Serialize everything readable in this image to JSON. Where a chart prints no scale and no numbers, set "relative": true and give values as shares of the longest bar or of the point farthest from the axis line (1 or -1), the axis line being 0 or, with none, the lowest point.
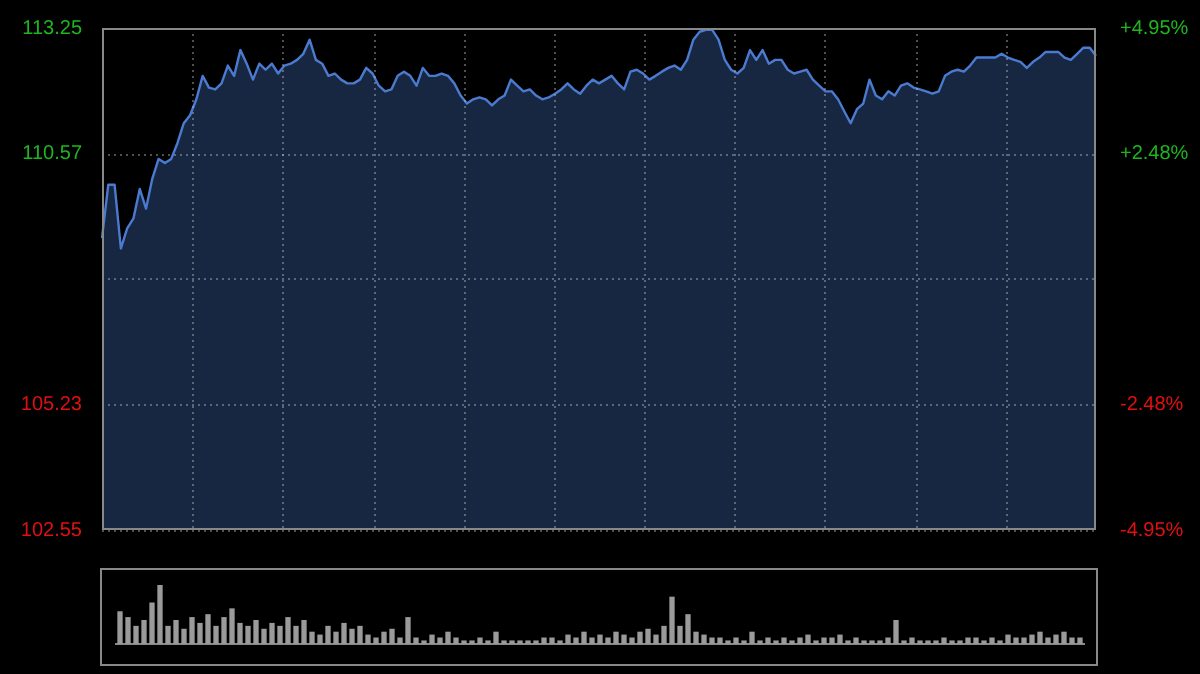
{
  "chart_data": [
    {
      "type": "area",
      "categories": [
        null,
        null,
        null,
        null,
        null,
        null,
        null,
        null,
        null,
        null,
        null,
        null,
        null,
        null,
        null,
        null,
        null,
        null,
        null,
        null,
        null,
        null,
        null,
        null,
        null,
        null,
        null,
        null,
        null,
        null,
        null,
        null,
        null,
        null,
        null,
        null,
        null,
        null,
        null,
        null,
        null,
        null,
        null,
        null,
        null,
        null,
        null,
        null,
        null,
        null,
        null,
        null,
        null,
        null,
        null,
        null,
        null,
        null,
        null,
        null,
        null,
        null,
        null,
        null,
        null,
        null,
        null,
        null,
        null,
        null,
        null,
        null,
        null,
        null,
        null,
        null,
        null,
        null,
        null,
        null,
        null,
        null,
        null,
        null,
        null,
        null,
        null,
        null,
        null,
        null,
        null,
        null,
        null,
        null,
        null,
        null,
        null,
        null,
        null,
        null,
        null,
        null,
        null,
        null,
        null,
        null,
        null,
        null,
        null,
        null,
        null,
        null,
        null,
        null,
        null,
        null,
        null,
        null,
        null,
        null,
        null,
        null,
        null,
        null,
        null,
        null,
        null,
        null,
        null,
        null,
        null,
        null,
        null,
        null,
        null,
        null,
        null,
        null,
        null,
        null,
        null,
        null,
        null,
        null,
        null,
        null,
        null,
        null,
        null,
        null,
        null,
        null,
        null,
        null,
        null,
        null,
        null,
        null,
        null
      ],
      "series": [
        {
          "color": "#4a7bd0",
          "values": [
            108.77,
            109.91,
            109.91,
            108.55,
            108.98,
            109.19,
            109.82,
            109.4,
            110.04,
            110.46,
            110.37,
            110.46,
            110.8,
            111.22,
            111.39,
            111.73,
            112.23,
            111.98,
            111.94,
            112.07,
            112.45,
            112.23,
            112.78,
            112.49,
            112.15,
            112.49,
            112.36,
            112.49,
            112.28,
            112.45,
            112.49,
            112.57,
            112.7,
            113.0,
            112.57,
            112.49,
            112.23,
            112.28,
            112.15,
            112.07,
            112.07,
            112.15,
            112.4,
            112.28,
            112.02,
            111.9,
            111.94,
            112.23,
            112.32,
            112.23,
            112.02,
            112.4,
            112.23,
            112.23,
            112.28,
            112.23,
            112.07,
            111.81,
            111.64,
            111.73,
            111.77,
            111.73,
            111.6,
            111.73,
            111.81,
            112.15,
            112.02,
            111.9,
            111.94,
            111.81,
            111.73,
            111.77,
            111.85,
            111.94,
            112.07,
            111.94,
            111.85,
            112.02,
            112.15,
            112.07,
            112.15,
            112.23,
            112.07,
            111.94,
            112.32,
            112.36,
            112.28,
            112.15,
            112.23,
            112.32,
            112.4,
            112.45,
            112.36,
            112.57,
            113.0,
            113.17,
            113.21,
            113.21,
            113.0,
            112.57,
            112.36,
            112.28,
            112.4,
            112.78,
            112.57,
            112.78,
            112.49,
            112.57,
            112.57,
            112.36,
            112.28,
            112.32,
            112.36,
            112.15,
            112.02,
            111.9,
            111.9,
            111.73,
            111.47,
            111.22,
            111.52,
            111.64,
            112.15,
            111.81,
            111.73,
            111.9,
            111.81,
            112.02,
            112.07,
            111.98,
            111.94,
            111.9,
            111.85,
            111.9,
            112.23,
            112.32,
            112.36,
            112.32,
            112.45,
            112.62,
            112.62,
            112.62,
            112.62,
            112.7,
            112.62,
            112.57,
            112.53,
            112.4,
            112.53,
            112.62,
            112.74,
            112.74,
            112.74,
            112.62,
            112.57,
            112.7,
            112.83,
            112.83,
            112.66
          ]
        }
      ],
      "ylim": [
        102.55,
        113.25
      ],
      "yticks": [
        102.55,
        105.23,
        {
          "value": 107.9,
          "label": null
        },
        110.57,
        113.25
      ],
      "y2lim": [
        -4.95,
        4.95
      ],
      "y2ticks": [
        {
          "value": -4.95,
          "label": "-4.95%"
        },
        {
          "value": -2.48,
          "label": "-2.48%"
        },
        {
          "value": 0,
          "label": null
        },
        {
          "value": 2.48,
          "label": "+2.48%"
        },
        {
          "value": 4.95,
          "label": "+4.95%"
        }
      ],
      "grid": true,
      "tick_labels": "y"
    },
    {
      "type": "bar",
      "relative": true,
      "categories": [
        null,
        null,
        null,
        null,
        null,
        null,
        null,
        null,
        null,
        null,
        null,
        null,
        null,
        null,
        null,
        null,
        null,
        null,
        null,
        null,
        null,
        null,
        null,
        null,
        null,
        null,
        null,
        null,
        null,
        null,
        null,
        null,
        null,
        null,
        null,
        null,
        null,
        null,
        null,
        null,
        null,
        null,
        null,
        null,
        null,
        null,
        null,
        null,
        null,
        null,
        null,
        null,
        null,
        null,
        null,
        null,
        null,
        null,
        null,
        null,
        null,
        null,
        null,
        null,
        null,
        null,
        null,
        null,
        null,
        null,
        null,
        null,
        null,
        null,
        null,
        null,
        null,
        null,
        null,
        null,
        null,
        null,
        null,
        null,
        null,
        null,
        null,
        null,
        null,
        null,
        null,
        null,
        null,
        null,
        null,
        null,
        null,
        null,
        null,
        null,
        null,
        null,
        null,
        null,
        null,
        null,
        null,
        null,
        null,
        null,
        null,
        null,
        null,
        null,
        null,
        null,
        null,
        null,
        null,
        null,
        null
      ],
      "color": "#9a9a9a",
      "values": [
        0.55,
        0.45,
        0.3,
        0.4,
        0.7,
        1,
        0.3,
        0.4,
        0.25,
        0.45,
        0.35,
        0.5,
        0.3,
        0.45,
        0.6,
        0.35,
        0.3,
        0.4,
        0.25,
        0.35,
        0.3,
        0.45,
        0.3,
        0.4,
        0.2,
        0.15,
        0.3,
        0.2,
        0.35,
        0.25,
        0.3,
        0.15,
        0.1,
        0.2,
        0.25,
        0.1,
        0.45,
        0.1,
        0.05,
        0.15,
        0.1,
        0.2,
        0.1,
        0.05,
        0.05,
        0.1,
        0.05,
        0.2,
        0.05,
        0.05,
        0.05,
        0.05,
        0.05,
        0.1,
        0.1,
        0.05,
        0.15,
        0.1,
        0.2,
        0.1,
        0.15,
        0.1,
        0.2,
        0.15,
        0.1,
        0.2,
        0.25,
        0.15,
        0.3,
        0.8,
        0.3,
        0.5,
        0.2,
        0.15,
        0.1,
        0.1,
        0.05,
        0.1,
        0.05,
        0.2,
        0.05,
        0.1,
        0.05,
        0.1,
        0.05,
        0.1,
        0.15,
        0.05,
        0.1,
        0.1,
        0.15,
        0.05,
        0.1,
        0.05,
        0.05,
        0.05,
        0.1,
        0.4,
        0.05,
        0.1,
        0.05,
        0.05,
        0.05,
        0.1,
        0.05,
        0.05,
        0.1,
        0.1,
        0.05,
        0.1,
        0.05,
        0.15,
        0.1,
        0.1,
        0.15,
        0.2,
        0.1,
        0.15,
        0.2,
        0.1,
        0.1
      ]
    }
  ]
}
